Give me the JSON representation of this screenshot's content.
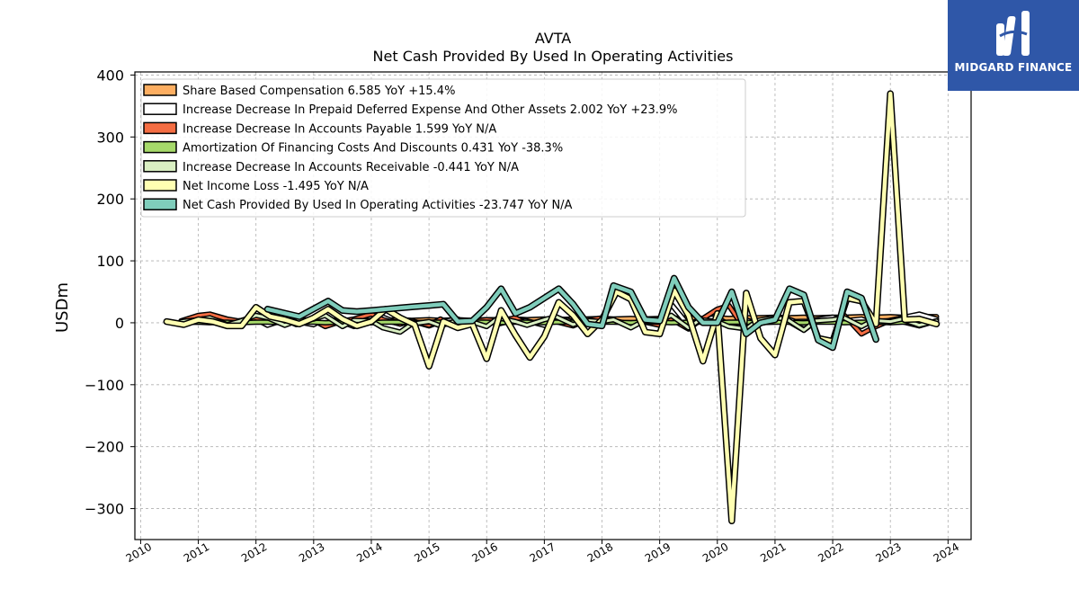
{
  "brand": {
    "name": "MIDGARD FINANCE",
    "color": "#2f57a8"
  },
  "chart_data": {
    "type": "line",
    "title": "AVTA",
    "subtitle": "Net Cash Provided By Used In Operating Activities",
    "ylabel": "USDm",
    "xlabel": "",
    "ylim": [
      -350,
      405
    ],
    "xlim": [
      2009.9,
      2024.4
    ],
    "yticks": [
      400,
      300,
      200,
      100,
      0,
      -100,
      -200,
      -300
    ],
    "ytick_labels": [
      "400",
      "300",
      "200",
      "100",
      "0",
      "−100",
      "−200",
      "−300"
    ],
    "xticks": [
      2010,
      2011,
      2012,
      2013,
      2014,
      2015,
      2016,
      2017,
      2018,
      2019,
      2020,
      2021,
      2022,
      2023,
      2024
    ],
    "xtick_labels": [
      "2010",
      "2011",
      "2012",
      "2013",
      "2014",
      "2015",
      "2016",
      "2017",
      "2018",
      "2019",
      "2020",
      "2021",
      "2022",
      "2023",
      "2024"
    ],
    "grid": true,
    "legend_position": "top-left",
    "series": [
      {
        "name": "Share Based Compensation",
        "legend": "Share Based Compensation  6.585 YoY +15.4%",
        "color": "#fdae61",
        "width": 3,
        "x": [
          2010.7,
          2011.0,
          2011.2,
          2011.5,
          2011.7,
          2012.0,
          2012.2,
          2012.5,
          2012.7,
          2013.0,
          2013.2,
          2013.5,
          2013.7,
          2014.0,
          2014.2,
          2014.5,
          2014.7,
          2015.0,
          2015.2,
          2015.5,
          2015.7,
          2016.0,
          2016.2,
          2016.5,
          2016.7,
          2017.0,
          2017.2,
          2017.5,
          2017.7,
          2018.0,
          2018.2,
          2018.5,
          2018.7,
          2019.0,
          2019.2,
          2019.5,
          2019.7,
          2020.0,
          2020.2,
          2020.5,
          2020.7,
          2021.0,
          2021.2,
          2021.5,
          2021.7,
          2022.0,
          2022.2,
          2022.5,
          2022.7,
          2023.0,
          2023.2,
          2023.5,
          2023.8
        ],
        "y": [
          2,
          3,
          2,
          3,
          2,
          3,
          2,
          3,
          3,
          4,
          3,
          4,
          3,
          4,
          4,
          5,
          4,
          5,
          4,
          5,
          4,
          5,
          5,
          6,
          5,
          6,
          5,
          6,
          6,
          7,
          6,
          7,
          6,
          7,
          7,
          8,
          7,
          8,
          7,
          8,
          8,
          9,
          8,
          9,
          8,
          9,
          9,
          10,
          9,
          10,
          9,
          10,
          10
        ]
      },
      {
        "name": "Increase Decrease In Prepaid Deferred Expense And Other Assets",
        "legend": "Increase Decrease In Prepaid Deferred Expense And Other Assets  2.002 YoY +23.9%",
        "color": "#ffffff",
        "width": 3,
        "x": [
          2010.7,
          2011.0,
          2011.2,
          2011.5,
          2011.7,
          2012.0,
          2012.2,
          2012.5,
          2012.7,
          2013.0,
          2013.2,
          2013.5,
          2013.7,
          2014.0,
          2014.2,
          2014.5,
          2014.7,
          2015.0,
          2015.2,
          2015.5,
          2015.7,
          2016.0,
          2016.2,
          2016.5,
          2016.7,
          2017.0,
          2017.2,
          2017.5,
          2017.7,
          2018.0,
          2018.2,
          2018.5,
          2018.7,
          2019.0,
          2019.2,
          2019.5,
          2019.7,
          2020.0,
          2020.2,
          2020.5,
          2020.7,
          2021.0,
          2021.2,
          2021.5,
          2021.7,
          2022.0,
          2022.2,
          2022.5,
          2022.7,
          2023.0,
          2023.2,
          2023.5,
          2023.8
        ],
        "y": [
          -3,
          8,
          4,
          -2,
          3,
          6,
          -4,
          5,
          2,
          -3,
          7,
          1,
          -6,
          4,
          9,
          -2,
          3,
          -5,
          2,
          6,
          -3,
          4,
          -2,
          5,
          3,
          -4,
          8,
          2,
          -3,
          5,
          3,
          -2,
          4,
          2,
          30,
          -4,
          6,
          8,
          -3,
          5,
          -2,
          4,
          7,
          -3,
          5,
          9,
          3,
          6,
          -2,
          4,
          8,
          14,
          6
        ]
      },
      {
        "name": "Increase Decrease In Accounts Payable",
        "legend": "Increase Decrease In Accounts Payable  1.599 YoY N/A",
        "color": "#f46d43",
        "width": 3,
        "x": [
          2010.7,
          2011.0,
          2011.2,
          2011.5,
          2011.7,
          2012.0,
          2012.2,
          2012.5,
          2012.7,
          2013.0,
          2013.2,
          2013.5,
          2013.7,
          2014.0,
          2014.2,
          2014.5,
          2014.7,
          2015.0,
          2015.2,
          2015.5,
          2015.7,
          2016.0,
          2016.2,
          2016.5,
          2016.7,
          2017.0,
          2017.2,
          2017.5,
          2017.7,
          2018.0,
          2018.2,
          2018.5,
          2018.7,
          2019.0,
          2019.2,
          2019.5,
          2019.7,
          2020.0,
          2020.2,
          2020.5,
          2020.7,
          2021.0,
          2021.2,
          2021.5,
          2021.7,
          2022.0,
          2022.2,
          2022.5,
          2022.7,
          2023.0,
          2023.2,
          2023.5,
          2023.8
        ],
        "y": [
          3,
          12,
          14,
          6,
          3,
          8,
          2,
          5,
          -3,
          4,
          -6,
          3,
          6,
          14,
          5,
          -2,
          3,
          -4,
          6,
          -8,
          2,
          5,
          3,
          8,
          -2,
          4,
          2,
          -5,
          3,
          8,
          4,
          -3,
          2,
          -4,
          6,
          -10,
          4,
          22,
          28,
          -14,
          3,
          6,
          4,
          -12,
          2,
          4,
          12,
          -18,
          -8,
          4,
          2,
          -5,
          3
        ]
      },
      {
        "name": "Amortization Of Financing Costs And Discounts",
        "legend": "Amortization Of Financing Costs And Discounts  0.431 YoY -38.3%",
        "color": "#a6d96a",
        "width": 3,
        "x": [
          2010.7,
          2011.0,
          2011.2,
          2011.5,
          2011.7,
          2012.0,
          2012.2,
          2012.5,
          2012.7,
          2013.0,
          2013.2,
          2013.5,
          2013.7,
          2014.0,
          2014.2,
          2014.5,
          2014.7,
          2015.0,
          2015.2,
          2015.5,
          2015.7,
          2016.0,
          2016.2,
          2016.5,
          2016.7,
          2017.0,
          2017.2,
          2017.5,
          2017.7,
          2018.0,
          2018.2,
          2018.5,
          2018.7,
          2019.0,
          2019.2,
          2019.5,
          2019.7,
          2020.0,
          2020.2,
          2020.5,
          2020.7,
          2021.0,
          2021.2,
          2021.5,
          2021.7,
          2022.0,
          2022.2,
          2022.5,
          2022.7,
          2023.0,
          2023.2,
          2023.5,
          2023.8
        ],
        "y": [
          0,
          1,
          0,
          1,
          0,
          1,
          1,
          0,
          1,
          1,
          0,
          1,
          1,
          0,
          1,
          1,
          0,
          1,
          1,
          0,
          1,
          1,
          0,
          1,
          1,
          0,
          1,
          1,
          0,
          1,
          1,
          0,
          1,
          1,
          0,
          1,
          1,
          0,
          1,
          1,
          0,
          1,
          1,
          0,
          1,
          1,
          0,
          1,
          1,
          0,
          1,
          1,
          0
        ]
      },
      {
        "name": "Increase Decrease In Accounts Receivable",
        "legend": "Increase Decrease In Accounts Receivable  -0.441 YoY N/A",
        "color": "#d9efc2",
        "width": 3,
        "x": [
          2010.7,
          2011.0,
          2011.2,
          2011.5,
          2011.7,
          2012.0,
          2012.2,
          2012.5,
          2012.7,
          2013.0,
          2013.2,
          2013.5,
          2013.7,
          2014.0,
          2014.2,
          2014.5,
          2014.7,
          2015.0,
          2015.2,
          2015.5,
          2015.7,
          2016.0,
          2016.2,
          2016.5,
          2016.7,
          2017.0,
          2017.2,
          2017.5,
          2017.7,
          2018.0,
          2018.2,
          2018.5,
          2018.7,
          2019.0,
          2019.2,
          2019.5,
          2019.7,
          2020.0,
          2020.2,
          2020.5,
          2020.7,
          2021.0,
          2021.2,
          2021.5,
          2021.7,
          2022.0,
          2022.2,
          2022.5,
          2022.7,
          2023.0,
          2023.2,
          2023.5,
          2023.8
        ],
        "y": [
          2,
          5,
          8,
          -3,
          2,
          12,
          8,
          -4,
          3,
          6,
          12,
          -6,
          4,
          3,
          -8,
          -15,
          -2,
          2,
          -5,
          4,
          3,
          -6,
          8,
          2,
          -4,
          5,
          10,
          -3,
          4,
          2,
          5,
          -8,
          2,
          3,
          12,
          -8,
          5,
          2,
          -6,
          -10,
          4,
          8,
          6,
          -12,
          3,
          5,
          8,
          -6,
          4,
          2,
          6,
          -4,
          3
        ]
      },
      {
        "name": "Net Income Loss",
        "legend": "Net Income Loss  -1.495 YoY N/A",
        "color": "#ffffb2",
        "width": 4.5,
        "x": [
          2010.45,
          2010.75,
          2011.0,
          2011.25,
          2011.5,
          2011.75,
          2012.0,
          2012.25,
          2012.5,
          2012.75,
          2013.0,
          2013.25,
          2013.5,
          2013.75,
          2014.0,
          2014.25,
          2014.5,
          2014.75,
          2015.0,
          2015.25,
          2015.5,
          2015.75,
          2016.0,
          2016.25,
          2016.5,
          2016.75,
          2017.0,
          2017.25,
          2017.5,
          2017.75,
          2018.0,
          2018.25,
          2018.5,
          2018.75,
          2019.0,
          2019.25,
          2019.5,
          2019.75,
          2020.0,
          2020.25,
          2020.5,
          2020.75,
          2021.0,
          2021.25,
          2021.5,
          2021.75,
          2022.0,
          2022.25,
          2022.5,
          2022.75,
          2023.0,
          2023.25,
          2023.5,
          2023.8
        ],
        "y": [
          2,
          -3,
          5,
          2,
          -5,
          -5,
          25,
          10,
          5,
          -2,
          8,
          22,
          6,
          -5,
          2,
          22,
          8,
          -3,
          -70,
          2,
          -8,
          -2,
          -58,
          20,
          -20,
          -56,
          -22,
          33,
          12,
          -18,
          5,
          50,
          38,
          -15,
          -18,
          52,
          12,
          -62,
          15,
          -320,
          48,
          -25,
          -52,
          33,
          35,
          -25,
          -30,
          40,
          35,
          -2,
          370,
          5,
          6,
          -2
        ]
      },
      {
        "name": "Net Cash Provided By Used In Operating Activities",
        "legend": "Net Cash Provided By Used In Operating Activities  -23.747 YoY N/A",
        "color": "#7fcdbb",
        "width": 4.5,
        "segments": [
          {
            "x": [
              2012.2,
              2012.75,
              2013.25,
              2013.5,
              2013.75,
              2014.0,
              2014.25,
              2014.5,
              2014.75,
              2015.0,
              2015.25,
              2015.5,
              2015.75,
              2016.0,
              2016.25,
              2016.5,
              2016.75,
              2017.0,
              2017.25,
              2017.5,
              2017.75,
              2018.0,
              2018.2,
              2018.5,
              2018.75,
              2019.0,
              2019.25,
              2019.5,
              2019.75,
              2020.0,
              2020.25,
              2020.5,
              2020.75,
              2021.0,
              2021.25,
              2021.5,
              2021.75,
              2022.0,
              2022.25,
              2022.5,
              2022.75
            ],
            "y": [
              22,
              10,
              35,
              20,
              18,
              20,
              22,
              24,
              26,
              28,
              30,
              2,
              3,
              25,
              55,
              15,
              25,
              40,
              55,
              30,
              -2,
              -5,
              60,
              50,
              5,
              3,
              72,
              25,
              0,
              0,
              50,
              -18,
              0,
              5,
              55,
              45,
              -28,
              -40,
              50,
              40,
              -27
            ]
          }
        ]
      }
    ]
  }
}
